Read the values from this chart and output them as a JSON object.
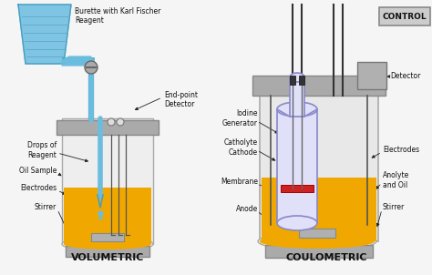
{
  "bg_color": "#f5f5f5",
  "vol_label": "VOLUMETRIC",
  "coul_label": "COULOMETRIC",
  "control_label": "CONTROL",
  "burette_label": "Burette with Karl Fischer\nReagent",
  "endpoint_label": "End-point\nDetector",
  "drops_label": "Drops of\nReagent",
  "oil_label": "Oil Sample",
  "electrodes_label_v": "Electrodes",
  "stirrer_label_v": "Stirrer",
  "iodine_label": "Iodine\nGenerator",
  "catholyte_label": "Catholyte\nCathode",
  "membrane_label": "Membrane",
  "anode_label": "Anode",
  "electrodes_label_c": "Electrodes",
  "anolyte_label": "Anolyte\nand Oil",
  "stirrer_label_c": "Stirrer",
  "detector_label": "Detector",
  "burette_blue": "#6bbde0",
  "burette_blue_dark": "#4a9fc0",
  "vessel_gray": "#d8d8d8",
  "collar_gray": "#aaaaaa",
  "oil_yellow": "#f0a800",
  "iodine_purple": "#8888cc",
  "membrane_red": "#cc2222",
  "electrode_dark": "#444444",
  "stirrer_silver": "#b0b0b0",
  "control_gray": "#cccccc",
  "detector_gray": "#999999",
  "text_color": "#111111",
  "arrow_color": "#222222"
}
